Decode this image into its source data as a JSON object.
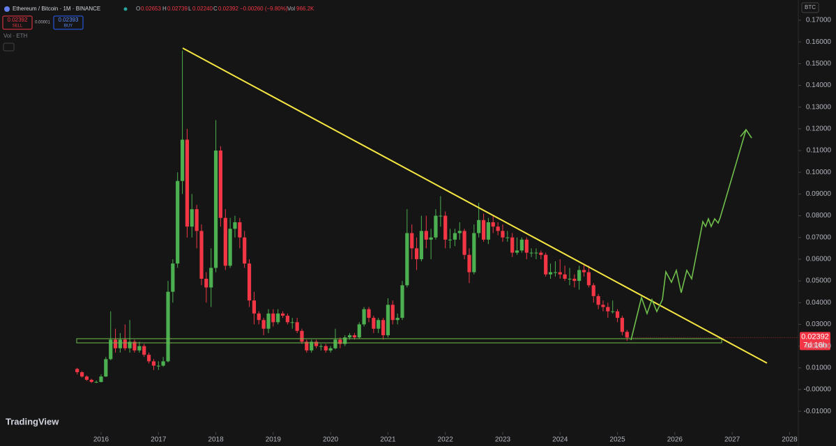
{
  "header": {
    "symbol": "Ethereum / Bitcoin · 1M · BINANCE",
    "o_key": "O",
    "o_val": "0.02653",
    "h_key": "H",
    "h_val": "0.02739",
    "l_key": "L",
    "l_val": "0.02240",
    "c_key": "C",
    "c_val": "0.02392",
    "change": "−0.00260 (−9.80%)",
    "vol_key": "Vol",
    "vol_val": "966.2K",
    "sell_price": "0.02392",
    "sell": "SELL",
    "spread": "0.00001",
    "buy_price": "0.02393",
    "buy": "BUY",
    "volume_label": "Vol · ETH",
    "currency": "BTC",
    "countdown": "7d 16h",
    "brand": "TradingView"
  },
  "chart_data": {
    "type": "candlestick",
    "up_color": "#4caf50",
    "down_color": "#f23645",
    "xlim": [
      2014.238,
      2028.153
    ],
    "ylim": [
      -0.01956,
      0.17928
    ],
    "xticks": [
      2016,
      2017,
      2018,
      2019,
      2020,
      2021,
      2022,
      2023,
      2024,
      2025,
      2026,
      2027,
      2028
    ],
    "yticks": [
      {
        "value": -0.01,
        "label": "-0.01000"
      },
      {
        "value": 0,
        "label": "-0.00000"
      },
      {
        "value": 0.01,
        "label": "0.01000"
      },
      {
        "value": 0.02,
        "label": "0.02000"
      },
      {
        "value": 0.03,
        "label": "0.03000"
      },
      {
        "value": 0.04,
        "label": "0.04000"
      },
      {
        "value": 0.05,
        "label": "0.05000"
      },
      {
        "value": 0.06,
        "label": "0.06000"
      },
      {
        "value": 0.07,
        "label": "0.07000"
      },
      {
        "value": 0.08,
        "label": "0.08000"
      },
      {
        "value": 0.09,
        "label": "0.09000"
      },
      {
        "value": 0.1,
        "label": "0.10000"
      },
      {
        "value": 0.11,
        "label": "0.11000"
      },
      {
        "value": 0.12,
        "label": "0.12000"
      },
      {
        "value": 0.13,
        "label": "0.13000"
      },
      {
        "value": 0.14,
        "label": "0.14000"
      },
      {
        "value": 0.15,
        "label": "0.15000"
      },
      {
        "value": 0.16,
        "label": "0.16000"
      },
      {
        "value": 0.17,
        "label": "0.17000"
      }
    ],
    "x": [
      2015.583,
      2015.667,
      2015.75,
      2015.833,
      2015.917,
      2016,
      2016.083,
      2016.167,
      2016.25,
      2016.333,
      2016.417,
      2016.5,
      2016.583,
      2016.667,
      2016.75,
      2016.833,
      2016.917,
      2017,
      2017.083,
      2017.167,
      2017.25,
      2017.333,
      2017.417,
      2017.5,
      2017.583,
      2017.667,
      2017.75,
      2017.833,
      2017.917,
      2018,
      2018.083,
      2018.167,
      2018.25,
      2018.333,
      2018.417,
      2018.5,
      2018.583,
      2018.667,
      2018.75,
      2018.833,
      2018.917,
      2019,
      2019.083,
      2019.167,
      2019.25,
      2019.333,
      2019.417,
      2019.5,
      2019.583,
      2019.667,
      2019.75,
      2019.833,
      2019.917,
      2020,
      2020.083,
      2020.167,
      2020.25,
      2020.333,
      2020.417,
      2020.5,
      2020.583,
      2020.667,
      2020.75,
      2020.833,
      2020.917,
      2021,
      2021.083,
      2021.167,
      2021.25,
      2021.333,
      2021.417,
      2021.5,
      2021.583,
      2021.667,
      2021.75,
      2021.833,
      2021.917,
      2022,
      2022.083,
      2022.167,
      2022.25,
      2022.333,
      2022.417,
      2022.5,
      2022.583,
      2022.667,
      2022.75,
      2022.833,
      2022.917,
      2023,
      2023.083,
      2023.167,
      2023.25,
      2023.333,
      2023.417,
      2023.5,
      2023.583,
      2023.667,
      2023.75,
      2023.833,
      2023.917,
      2024,
      2024.083,
      2024.167,
      2024.25,
      2024.333,
      2024.417,
      2024.5,
      2024.583,
      2024.667,
      2024.75,
      2024.833,
      2024.917,
      2025,
      2025.083,
      2025.167
    ],
    "ohlc": [
      [
        0.0095,
        0.01,
        0.007,
        0.008
      ],
      [
        0.008,
        0.0085,
        0.0055,
        0.006
      ],
      [
        0.006,
        0.0065,
        0.004,
        0.0045
      ],
      [
        0.0045,
        0.005,
        0.003,
        0.0035
      ],
      [
        0.0035,
        0.0042,
        0.003,
        0.0035
      ],
      [
        0.0035,
        0.007,
        0.0033,
        0.006
      ],
      [
        0.006,
        0.015,
        0.0058,
        0.014
      ],
      [
        0.014,
        0.036,
        0.0135,
        0.023
      ],
      [
        0.023,
        0.028,
        0.017,
        0.019
      ],
      [
        0.019,
        0.026,
        0.017,
        0.023
      ],
      [
        0.023,
        0.03,
        0.018,
        0.019
      ],
      [
        0.019,
        0.032,
        0.017,
        0.022
      ],
      [
        0.022,
        0.023,
        0.017,
        0.018
      ],
      [
        0.018,
        0.022,
        0.017,
        0.02
      ],
      [
        0.02,
        0.021,
        0.015,
        0.016
      ],
      [
        0.016,
        0.017,
        0.012,
        0.013
      ],
      [
        0.013,
        0.014,
        0.009,
        0.011
      ],
      [
        0.011,
        0.013,
        0.009,
        0.011
      ],
      [
        0.011,
        0.015,
        0.0105,
        0.013
      ],
      [
        0.013,
        0.05,
        0.0125,
        0.045
      ],
      [
        0.045,
        0.06,
        0.04,
        0.058
      ],
      [
        0.058,
        0.1,
        0.056,
        0.096
      ],
      [
        0.096,
        0.156,
        0.09,
        0.115
      ],
      [
        0.115,
        0.12,
        0.07,
        0.075
      ],
      [
        0.075,
        0.09,
        0.07,
        0.083
      ],
      [
        0.083,
        0.085,
        0.065,
        0.073
      ],
      [
        0.073,
        0.076,
        0.048,
        0.051
      ],
      [
        0.051,
        0.054,
        0.04,
        0.047
      ],
      [
        0.047,
        0.065,
        0.038,
        0.056
      ],
      [
        0.056,
        0.124,
        0.054,
        0.11
      ],
      [
        0.11,
        0.112,
        0.075,
        0.079
      ],
      [
        0.079,
        0.083,
        0.055,
        0.057
      ],
      [
        0.057,
        0.079,
        0.056,
        0.074
      ],
      [
        0.074,
        0.08,
        0.07,
        0.077
      ],
      [
        0.077,
        0.079,
        0.065,
        0.07
      ],
      [
        0.07,
        0.073,
        0.056,
        0.058
      ],
      [
        0.058,
        0.06,
        0.038,
        0.041
      ],
      [
        0.041,
        0.045,
        0.03,
        0.035
      ],
      [
        0.035,
        0.036,
        0.03,
        0.032
      ],
      [
        0.032,
        0.033,
        0.025,
        0.028
      ],
      [
        0.028,
        0.037,
        0.026,
        0.035
      ],
      [
        0.035,
        0.037,
        0.029,
        0.031
      ],
      [
        0.031,
        0.037,
        0.03,
        0.035
      ],
      [
        0.035,
        0.036,
        0.033,
        0.034
      ],
      [
        0.034,
        0.035,
        0.03,
        0.031
      ],
      [
        0.031,
        0.033,
        0.028,
        0.031
      ],
      [
        0.031,
        0.033,
        0.026,
        0.027
      ],
      [
        0.027,
        0.028,
        0.021,
        0.022
      ],
      [
        0.022,
        0.023,
        0.017,
        0.018
      ],
      [
        0.018,
        0.023,
        0.017,
        0.022
      ],
      [
        0.022,
        0.023,
        0.019,
        0.02
      ],
      [
        0.02,
        0.021,
        0.018,
        0.02
      ],
      [
        0.02,
        0.021,
        0.017,
        0.018
      ],
      [
        0.018,
        0.02,
        0.017,
        0.019
      ],
      [
        0.019,
        0.028,
        0.0185,
        0.023
      ],
      [
        0.023,
        0.024,
        0.019,
        0.021
      ],
      [
        0.021,
        0.025,
        0.02,
        0.024
      ],
      [
        0.024,
        0.026,
        0.023,
        0.025
      ],
      [
        0.025,
        0.026,
        0.023,
        0.024
      ],
      [
        0.024,
        0.031,
        0.0235,
        0.03
      ],
      [
        0.03,
        0.038,
        0.029,
        0.037
      ],
      [
        0.037,
        0.038,
        0.031,
        0.033
      ],
      [
        0.033,
        0.034,
        0.026,
        0.028
      ],
      [
        0.028,
        0.033,
        0.026,
        0.032
      ],
      [
        0.032,
        0.033,
        0.023,
        0.025
      ],
      [
        0.025,
        0.042,
        0.024,
        0.039
      ],
      [
        0.039,
        0.041,
        0.03,
        0.032
      ],
      [
        0.032,
        0.035,
        0.03,
        0.033
      ],
      [
        0.033,
        0.05,
        0.032,
        0.048
      ],
      [
        0.048,
        0.083,
        0.047,
        0.072
      ],
      [
        0.072,
        0.076,
        0.06,
        0.065
      ],
      [
        0.065,
        0.07,
        0.055,
        0.06
      ],
      [
        0.06,
        0.08,
        0.059,
        0.073
      ],
      [
        0.073,
        0.08,
        0.065,
        0.069
      ],
      [
        0.069,
        0.074,
        0.06,
        0.07
      ],
      [
        0.07,
        0.083,
        0.069,
        0.08
      ],
      [
        0.08,
        0.089,
        0.075,
        0.08
      ],
      [
        0.08,
        0.082,
        0.065,
        0.069
      ],
      [
        0.069,
        0.074,
        0.065,
        0.069
      ],
      [
        0.069,
        0.074,
        0.066,
        0.072
      ],
      [
        0.072,
        0.077,
        0.069,
        0.073
      ],
      [
        0.073,
        0.074,
        0.06,
        0.062
      ],
      [
        0.062,
        0.065,
        0.049,
        0.054
      ],
      [
        0.054,
        0.076,
        0.053,
        0.072
      ],
      [
        0.072,
        0.086,
        0.07,
        0.078
      ],
      [
        0.078,
        0.081,
        0.068,
        0.069
      ],
      [
        0.069,
        0.079,
        0.067,
        0.077
      ],
      [
        0.077,
        0.08,
        0.072,
        0.075
      ],
      [
        0.075,
        0.077,
        0.071,
        0.073
      ],
      [
        0.073,
        0.076,
        0.068,
        0.07
      ],
      [
        0.07,
        0.073,
        0.068,
        0.07
      ],
      [
        0.07,
        0.072,
        0.061,
        0.063
      ],
      [
        0.063,
        0.07,
        0.062,
        0.064
      ],
      [
        0.064,
        0.07,
        0.063,
        0.069
      ],
      [
        0.069,
        0.07,
        0.06,
        0.063
      ],
      [
        0.063,
        0.065,
        0.061,
        0.063
      ],
      [
        0.063,
        0.065,
        0.06,
        0.063
      ],
      [
        0.063,
        0.064,
        0.06,
        0.062
      ],
      [
        0.062,
        0.063,
        0.052,
        0.053
      ],
      [
        0.053,
        0.058,
        0.051,
        0.054
      ],
      [
        0.054,
        0.059,
        0.052,
        0.054
      ],
      [
        0.054,
        0.06,
        0.051,
        0.053
      ],
      [
        0.053,
        0.057,
        0.05,
        0.051
      ],
      [
        0.051,
        0.056,
        0.048,
        0.051
      ],
      [
        0.051,
        0.053,
        0.047,
        0.05
      ],
      [
        0.05,
        0.057,
        0.046,
        0.055
      ],
      [
        0.055,
        0.058,
        0.052,
        0.054
      ],
      [
        0.054,
        0.057,
        0.047,
        0.048
      ],
      [
        0.048,
        0.049,
        0.04,
        0.043
      ],
      [
        0.043,
        0.044,
        0.037,
        0.039
      ],
      [
        0.039,
        0.041,
        0.036,
        0.038
      ],
      [
        0.038,
        0.04,
        0.033,
        0.036
      ],
      [
        0.036,
        0.041,
        0.035,
        0.036
      ],
      [
        0.036,
        0.037,
        0.031,
        0.033
      ],
      [
        0.033,
        0.034,
        0.025,
        0.02653
      ],
      [
        0.02653,
        0.02739,
        0.0224,
        0.02392
      ]
    ]
  }
}
